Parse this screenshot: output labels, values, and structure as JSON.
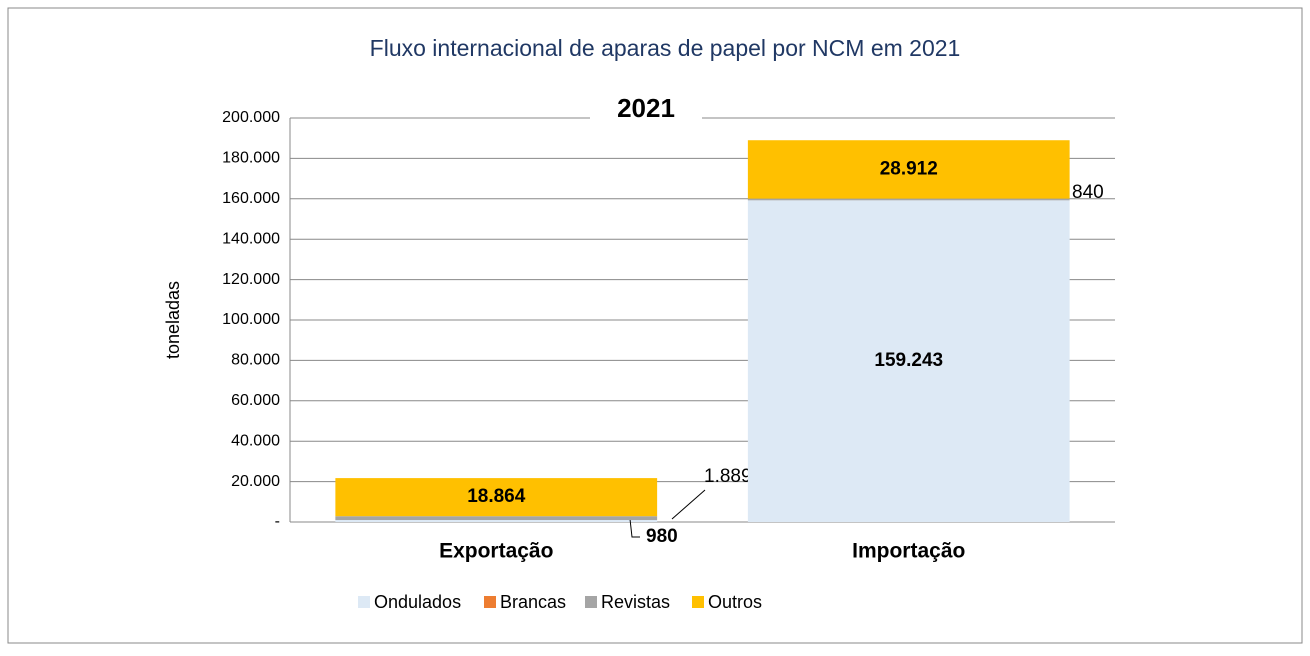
{
  "chart_data": {
    "type": "stacked_bar",
    "title": "Fluxo internacional de aparas de papel por NCM em 2021",
    "annotation": "2021",
    "y_label": "toneladas",
    "categories": [
      "Exportação",
      "Importação"
    ],
    "series": [
      {
        "name": "Ondulados",
        "color": "#dde9f5",
        "values": [
          980,
          159243
        ],
        "value_labels": [
          "980",
          "159.243"
        ]
      },
      {
        "name": "Brancas",
        "color": "#ed7d31",
        "values": [
          0,
          0
        ]
      },
      {
        "name": "Revistas",
        "color": "#a5a5a5",
        "values": [
          1889,
          840
        ],
        "value_labels": [
          "1.889",
          "840"
        ]
      },
      {
        "name": "Outros",
        "color": "#ffc000",
        "values": [
          18864,
          28912
        ],
        "value_labels": [
          "18.864",
          "28.912"
        ]
      }
    ],
    "ylim": [
      0,
      200000
    ],
    "yticks": [
      {
        "value": 0,
        "label": "-"
      },
      {
        "value": 20000,
        "label": "20.000"
      },
      {
        "value": 40000,
        "label": "40.000"
      },
      {
        "value": 60000,
        "label": "60.000"
      },
      {
        "value": 80000,
        "label": "80.000"
      },
      {
        "value": 100000,
        "label": "100.000"
      },
      {
        "value": 120000,
        "label": "120.000"
      },
      {
        "value": 140000,
        "label": "140.000"
      },
      {
        "value": 160000,
        "label": "160.000"
      },
      {
        "value": 180000,
        "label": "180.000"
      },
      {
        "value": 200000,
        "label": "200.000"
      }
    ],
    "grid": true
  }
}
